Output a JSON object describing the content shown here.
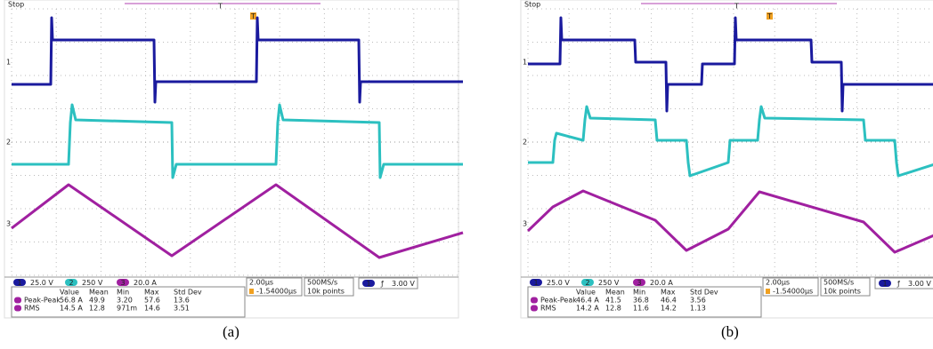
{
  "panels": [
    {
      "status": "Stop",
      "trigger_marker": "T",
      "channels": [
        {
          "marker": "1",
          "scale": "25.0 V"
        },
        {
          "marker": "2",
          "scale": "250 V"
        },
        {
          "marker": "3",
          "scale": "20.0 A"
        }
      ],
      "timebase": "2.00µs",
      "delay": "-1.54000µs",
      "sample_rate": "500MS/s",
      "record_length": "10k points",
      "trigger_channel": "1",
      "trigger_slope": "ƒ",
      "trigger_level": "3.00 V",
      "measurements": {
        "headers": [
          "Value",
          "Mean",
          "Min",
          "Max",
          "Std Dev"
        ],
        "rows": [
          {
            "label": "Peak-Peak",
            "cells": [
              "56.8 A",
              "49.9",
              "3.20",
              "57.6",
              "13.6"
            ]
          },
          {
            "label": "RMS",
            "cells": [
              "14.5 A",
              "12.8",
              "971m",
              "14.6",
              "3.51"
            ]
          }
        ]
      },
      "caption": "(a)"
    },
    {
      "status": "Stop",
      "trigger_marker": "T",
      "channels": [
        {
          "marker": "1",
          "scale": "25.0 V"
        },
        {
          "marker": "2",
          "scale": "250 V"
        },
        {
          "marker": "3",
          "scale": "20.0 A"
        }
      ],
      "timebase": "2.00µs",
      "delay": "-1.54000µs",
      "sample_rate": "500MS/s",
      "record_length": "10k points",
      "trigger_channel": "1",
      "trigger_slope": "ƒ",
      "trigger_level": "3.00 V",
      "measurements": {
        "headers": [
          "Value",
          "Mean",
          "Min",
          "Max",
          "Std Dev"
        ],
        "rows": [
          {
            "label": "Peak-Peak",
            "cells": [
              "46.4 A",
              "41.5",
              "36.8",
              "46.4",
              "3.56"
            ]
          },
          {
            "label": "RMS",
            "cells": [
              "14.2 A",
              "12.8",
              "11.6",
              "14.2",
              "1.13"
            ]
          }
        ]
      },
      "caption": "(b)"
    }
  ]
}
